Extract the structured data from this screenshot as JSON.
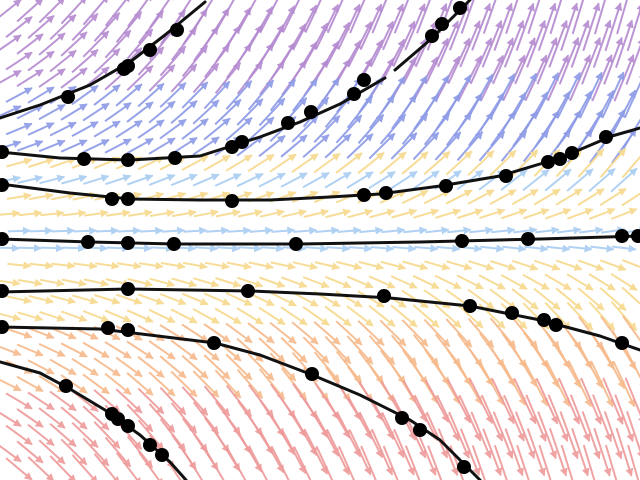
{
  "figure": {
    "kind": "direction field with solution curves",
    "background": "#ffffff",
    "colors": {
      "purple_arrows": "#b48ad0",
      "blue_arrows": "#8c9ae6",
      "light_blue_arrows": "#a9cdf2",
      "yellow_arrows": "#f7d98c",
      "orange_arrows": "#f6b98a",
      "red_arrows": "#ee9a9a",
      "curve": "#111111",
      "marker": "#000000"
    },
    "solution_curves": [
      {
        "id": "c1",
        "marker_count": 5
      },
      {
        "id": "c2",
        "marker_count": 4
      },
      {
        "id": "c3",
        "marker_count": 11
      },
      {
        "id": "c4",
        "marker_count": 7
      },
      {
        "id": "c5",
        "marker_count": 8
      },
      {
        "id": "c6",
        "marker_count": 9
      },
      {
        "id": "c7",
        "marker_count": 8
      },
      {
        "id": "c8",
        "marker_count": 7
      },
      {
        "id": "c9",
        "marker_count": 5
      }
    ]
  }
}
